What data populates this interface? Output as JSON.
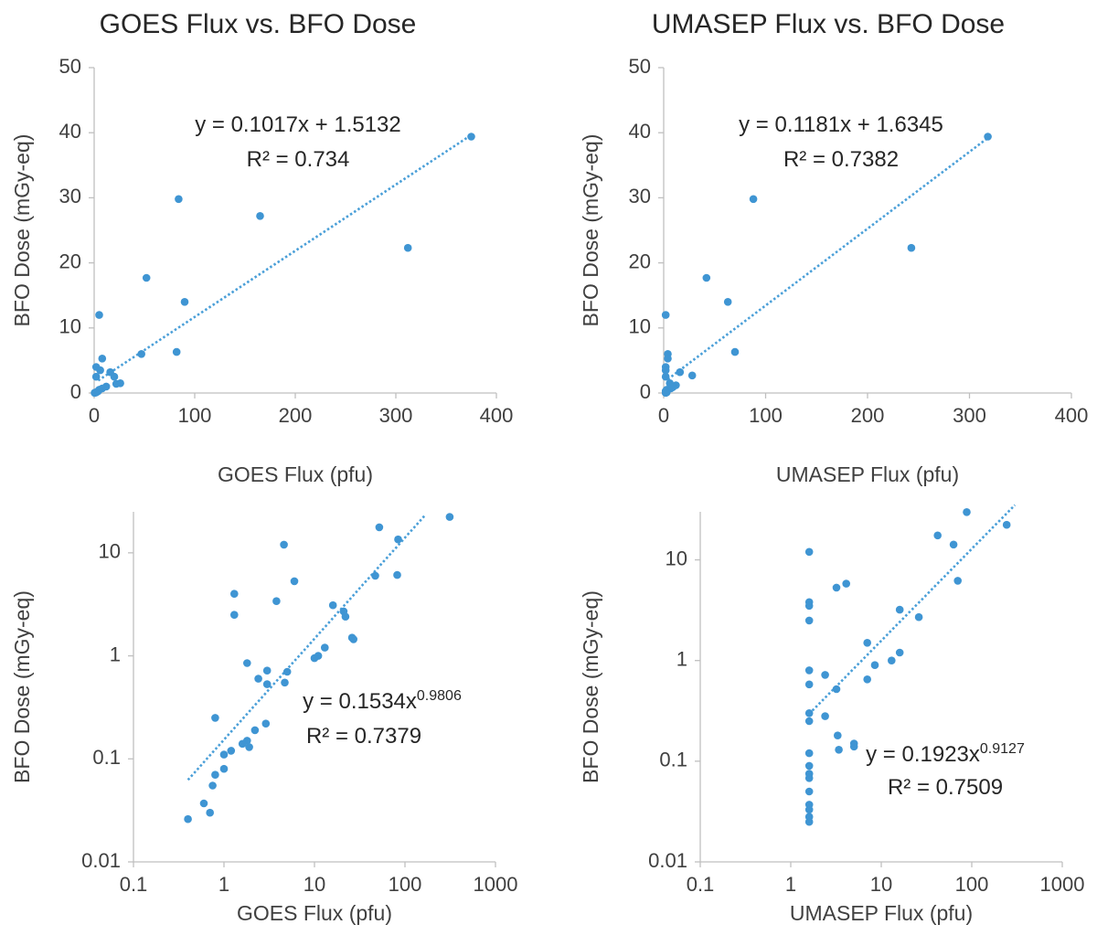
{
  "chart_data": [
    {
      "id": "goes-linear",
      "type": "scatter",
      "title": "GOES Flux vs. BFO Dose",
      "xlabel": "GOES Flux (pfu)",
      "ylabel": "BFO Dose (mGy-eq)",
      "xscale": "linear",
      "yscale": "linear",
      "xlim": [
        0,
        400
      ],
      "ylim": [
        0,
        50
      ],
      "xticks": [
        0,
        100,
        200,
        300,
        400
      ],
      "yticks": [
        0,
        10,
        20,
        30,
        40,
        50
      ],
      "xtick_labels": [
        "0",
        "100",
        "200",
        "300",
        "400"
      ],
      "ytick_labels": [
        "0",
        "10",
        "20",
        "30",
        "40",
        "50"
      ],
      "trendline": {
        "kind": "linear",
        "a": 0.1017,
        "b": 1.5132,
        "x_from": 4,
        "x_to": 375
      },
      "equation": "y = 0.1017x + 1.5132",
      "r2": "R² = 0.734",
      "points": [
        [
          375,
          39.4
        ],
        [
          84,
          29.8
        ],
        [
          165,
          27.2
        ],
        [
          312,
          22.3
        ],
        [
          52,
          17.7
        ],
        [
          90,
          14.0
        ],
        [
          5,
          12.0
        ],
        [
          47,
          6.0
        ],
        [
          82,
          6.3
        ],
        [
          8,
          5.3
        ],
        [
          2,
          4.0
        ],
        [
          6,
          3.5
        ],
        [
          16,
          3.2
        ],
        [
          20,
          2.5
        ],
        [
          2,
          2.5
        ],
        [
          26,
          1.5
        ],
        [
          22,
          1.4
        ],
        [
          12,
          1.0
        ],
        [
          8,
          0.7
        ],
        [
          5,
          0.5
        ],
        [
          4,
          0.3
        ],
        [
          3,
          0.2
        ],
        [
          2,
          0.1
        ],
        [
          1,
          0.05
        ],
        [
          0.5,
          0.03
        ]
      ]
    },
    {
      "id": "umasep-linear",
      "type": "scatter",
      "title": "UMASEP Flux vs. BFO Dose",
      "xlabel": "UMASEP Flux (pfu)",
      "ylabel": "BFO Dose (mGy-eq)",
      "xscale": "linear",
      "yscale": "linear",
      "xlim": [
        0,
        400
      ],
      "ylim": [
        0,
        50
      ],
      "xticks": [
        0,
        100,
        200,
        300,
        400
      ],
      "yticks": [
        0,
        10,
        20,
        30,
        40,
        50
      ],
      "xtick_labels": [
        "0",
        "100",
        "200",
        "300",
        "400"
      ],
      "ytick_labels": [
        "0",
        "10",
        "20",
        "30",
        "40",
        "50"
      ],
      "trendline": {
        "kind": "linear",
        "a": 0.1181,
        "b": 1.6345,
        "x_from": 4,
        "x_to": 318
      },
      "equation": "y = 0.1181x + 1.6345",
      "r2": "R² = 0.7382",
      "points": [
        [
          318,
          39.4
        ],
        [
          88,
          29.8
        ],
        [
          243,
          22.3
        ],
        [
          42,
          17.7
        ],
        [
          63,
          14.0
        ],
        [
          2,
          12.0
        ],
        [
          70,
          6.3
        ],
        [
          4,
          6.0
        ],
        [
          4,
          5.3
        ],
        [
          2,
          4.0
        ],
        [
          2,
          3.5
        ],
        [
          16,
          3.2
        ],
        [
          2,
          2.5
        ],
        [
          28,
          2.7
        ],
        [
          6,
          1.5
        ],
        [
          12,
          1.2
        ],
        [
          9,
          0.9
        ],
        [
          7,
          0.7
        ],
        [
          3,
          0.5
        ],
        [
          2,
          0.3
        ],
        [
          2,
          0.2
        ],
        [
          3,
          0.1
        ],
        [
          2,
          0.05
        ],
        [
          2,
          0.03
        ]
      ]
    },
    {
      "id": "goes-log",
      "type": "scatter",
      "title": "",
      "xlabel": "GOES Flux (pfu)",
      "ylabel": "BFO Dose (mGy-eq)",
      "xscale": "log",
      "yscale": "log",
      "xlim": [
        0.1,
        1000
      ],
      "ylim": [
        0.01,
        25
      ],
      "xticks": [
        0.1,
        1,
        10,
        100,
        1000
      ],
      "yticks": [
        0.01,
        0.1,
        1,
        10
      ],
      "xtick_labels": [
        "0.1",
        "1",
        "10",
        "100",
        "1000"
      ],
      "ytick_labels": [
        "0.01",
        "0.1",
        "1",
        "10"
      ],
      "trendline": {
        "kind": "power",
        "a": 0.1534,
        "b": 0.9806,
        "x_from": 0.4,
        "x_to": 165
      },
      "equation": "y = 0.1534x",
      "equation_exponent": "0.9806",
      "r2": "R² = 0.7379",
      "points": [
        [
          312,
          22.3
        ],
        [
          52,
          17.7
        ],
        [
          84,
          13.5
        ],
        [
          4.6,
          12.0
        ],
        [
          6,
          5.3
        ],
        [
          47,
          6.0
        ],
        [
          82,
          6.1
        ],
        [
          1.3,
          4.0
        ],
        [
          1.3,
          2.5
        ],
        [
          3.8,
          3.4
        ],
        [
          16,
          3.1
        ],
        [
          21,
          2.7
        ],
        [
          22,
          2.4
        ],
        [
          26,
          1.5
        ],
        [
          27,
          1.45
        ],
        [
          13,
          1.2
        ],
        [
          11,
          1.0
        ],
        [
          10,
          0.95
        ],
        [
          5,
          0.7
        ],
        [
          4.7,
          0.55
        ],
        [
          3,
          0.72
        ],
        [
          2.4,
          0.6
        ],
        [
          3,
          0.53
        ],
        [
          1.8,
          0.85
        ],
        [
          0.8,
          0.25
        ],
        [
          2.9,
          0.22
        ],
        [
          2.2,
          0.19
        ],
        [
          1.8,
          0.15
        ],
        [
          1.9,
          0.13
        ],
        [
          1.6,
          0.14
        ],
        [
          1.2,
          0.12
        ],
        [
          1.0,
          0.11
        ],
        [
          1.0,
          0.08
        ],
        [
          0.8,
          0.07
        ],
        [
          0.75,
          0.055
        ],
        [
          0.6,
          0.037
        ],
        [
          0.7,
          0.03
        ],
        [
          0.4,
          0.026
        ]
      ]
    },
    {
      "id": "umasep-log",
      "type": "scatter",
      "title": "",
      "xlabel": "UMASEP Flux (pfu)",
      "ylabel": "BFO Dose (mGy-eq)",
      "xscale": "log",
      "yscale": "log",
      "xlim": [
        0.1,
        1000
      ],
      "ylim": [
        0.01,
        30
      ],
      "xticks": [
        0.1,
        1,
        10,
        100,
        1000
      ],
      "yticks": [
        0.01,
        0.1,
        1,
        10
      ],
      "xtick_labels": [
        "0.1",
        "1",
        "10",
        "100",
        "1000"
      ],
      "ytick_labels": [
        "0.01",
        "0.1",
        "1",
        "10"
      ],
      "trendline": {
        "kind": "power",
        "a": 0.1923,
        "b": 0.9127,
        "x_from": 1.6,
        "x_to": 300
      },
      "equation": "y = 0.1923x",
      "equation_exponent": "0.9127",
      "r2": "R² = 0.7509",
      "points": [
        [
          1.6,
          12.0
        ],
        [
          1.6,
          3.8
        ],
        [
          1.6,
          3.5
        ],
        [
          1.6,
          2.5
        ],
        [
          1.6,
          0.8
        ],
        [
          1.6,
          0.58
        ],
        [
          1.6,
          0.3
        ],
        [
          1.6,
          0.25
        ],
        [
          1.6,
          0.12
        ],
        [
          1.6,
          0.09
        ],
        [
          1.6,
          0.075
        ],
        [
          1.6,
          0.068
        ],
        [
          1.6,
          0.05
        ],
        [
          1.6,
          0.037
        ],
        [
          1.6,
          0.033
        ],
        [
          1.6,
          0.028
        ],
        [
          1.6,
          0.025
        ],
        [
          2.4,
          0.72
        ],
        [
          2.4,
          0.28
        ],
        [
          3.2,
          0.52
        ],
        [
          3.3,
          0.18
        ],
        [
          3.4,
          0.13
        ],
        [
          5,
          0.15
        ],
        [
          5,
          0.14
        ],
        [
          3.2,
          5.3
        ],
        [
          4.1,
          5.8
        ],
        [
          7,
          1.5
        ],
        [
          7,
          0.65
        ],
        [
          8.5,
          0.9
        ],
        [
          13,
          1.0
        ],
        [
          16,
          1.2
        ],
        [
          16,
          3.2
        ],
        [
          26,
          2.7
        ],
        [
          42,
          17.5
        ],
        [
          63,
          14.2
        ],
        [
          70,
          6.2
        ],
        [
          88,
          29.8
        ],
        [
          243,
          22.3
        ]
      ]
    }
  ]
}
